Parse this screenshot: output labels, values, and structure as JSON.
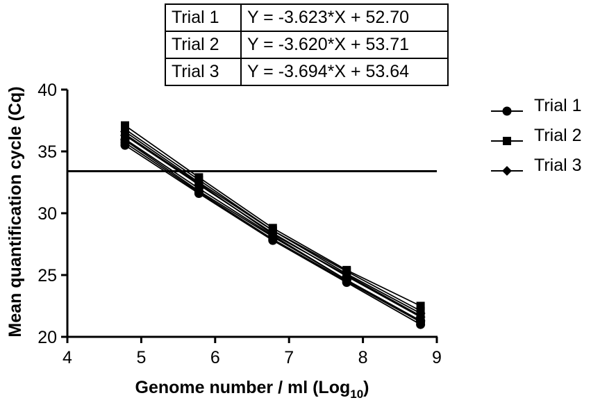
{
  "chart_data": {
    "type": "line",
    "xlabel_main": "Genome number / ml (Log",
    "xlabel_sub": "10",
    "xlabel_close": ")",
    "ylabel": "Mean quantification cycle (Cq)",
    "xlim": [
      4,
      9
    ],
    "ylim": [
      20,
      40
    ],
    "x_ticks": [
      4,
      5,
      6,
      7,
      8,
      9
    ],
    "y_ticks": [
      20,
      25,
      30,
      35,
      40
    ],
    "threshold_line_y": 33.4,
    "grid": false,
    "legend_position": "right",
    "x": [
      4.78,
      5.78,
      6.78,
      7.78,
      8.78
    ],
    "series": [
      {
        "name": "Trial 1",
        "marker": "circle",
        "replicates": [
          [
            35.5,
            31.6,
            27.8,
            24.4,
            21.0
          ],
          [
            35.7,
            31.7,
            27.9,
            24.5,
            21.2
          ],
          [
            35.9,
            31.8,
            28.1,
            24.6,
            21.3
          ]
        ]
      },
      {
        "name": "Trial 2",
        "marker": "square",
        "replicates": [
          [
            36.4,
            32.4,
            28.3,
            25.0,
            21.7
          ],
          [
            36.8,
            32.7,
            28.6,
            25.3,
            22.1
          ],
          [
            37.1,
            32.9,
            28.8,
            25.4,
            22.5
          ]
        ]
      },
      {
        "name": "Trial 3",
        "marker": "diamond",
        "replicates": [
          [
            36.0,
            32.0,
            28.2,
            24.6,
            21.3
          ],
          [
            36.3,
            32.3,
            28.4,
            24.9,
            21.6
          ],
          [
            36.6,
            32.5,
            28.6,
            25.1,
            21.9
          ]
        ]
      }
    ],
    "equations": [
      {
        "trial": "Trial 1",
        "equation": "Y = -3.623*X + 52.70"
      },
      {
        "trial": "Trial 2",
        "equation": "Y = -3.620*X + 53.71"
      },
      {
        "trial": "Trial 3",
        "equation": "Y = -3.694*X + 53.64"
      }
    ]
  }
}
